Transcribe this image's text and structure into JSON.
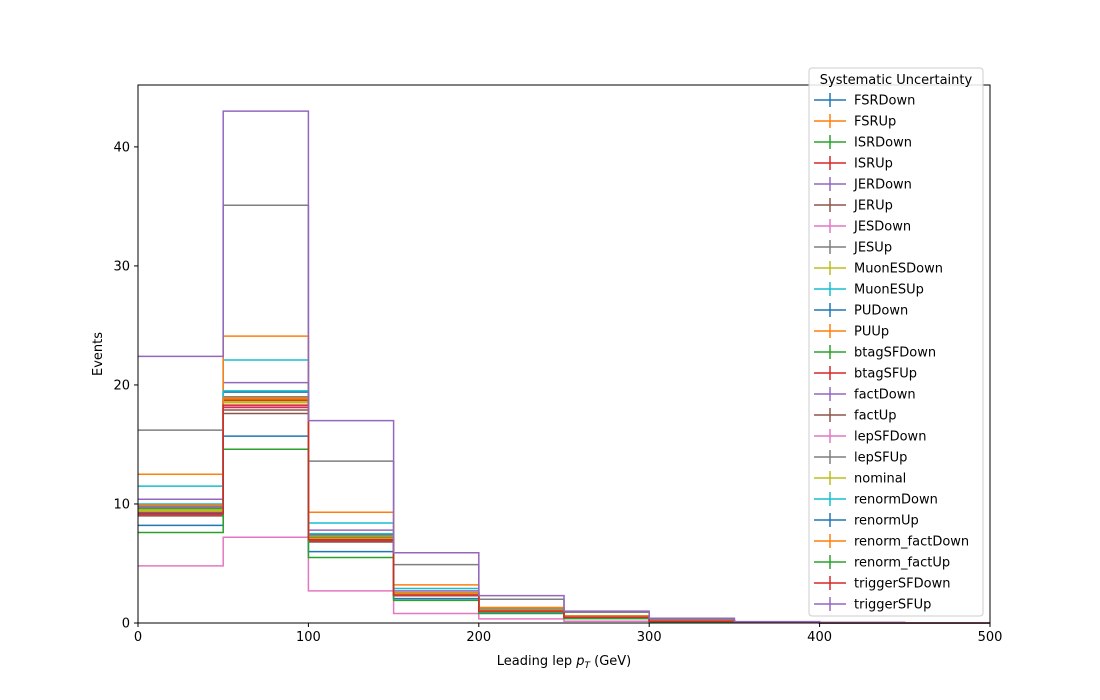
{
  "chart_data": {
    "type": "step",
    "xlabel_prefix": "Leading lep ",
    "xlabel_var": "p",
    "xlabel_sub": "T",
    "xlabel_suffix": " (GeV)",
    "ylabel": "Events",
    "xlim": [
      0,
      500
    ],
    "ylim": [
      0,
      45.2
    ],
    "xticks": [
      0,
      100,
      200,
      300,
      400,
      500
    ],
    "yticks": [
      0,
      10,
      20,
      30,
      40
    ],
    "grid": false,
    "legend_title": "Systematic Uncertainty",
    "legend_position": "upper-right",
    "bin_edges": [
      0,
      50,
      100,
      150,
      200,
      250,
      300,
      350,
      400,
      450,
      500
    ],
    "series": [
      {
        "name": "FSRDown",
        "color": "#1f77b4",
        "values": [
          9.3,
          18.7,
          7.1,
          2.4,
          1.0,
          0.5,
          0.15,
          0.05,
          0.0,
          0.0
        ]
      },
      {
        "name": "FSRUp",
        "color": "#ff7f0e",
        "values": [
          9.5,
          18.8,
          7.2,
          2.5,
          1.1,
          0.5,
          0.18,
          0.05,
          0.0,
          0.0
        ]
      },
      {
        "name": "ISRDown",
        "color": "#2ca02c",
        "values": [
          9.4,
          18.6,
          7.1,
          2.4,
          1.0,
          0.5,
          0.16,
          0.05,
          0.0,
          0.0
        ]
      },
      {
        "name": "ISRUp",
        "color": "#d62728",
        "values": [
          9.4,
          18.7,
          7.1,
          2.4,
          1.0,
          0.5,
          0.16,
          0.05,
          0.0,
          0.0
        ]
      },
      {
        "name": "JERDown",
        "color": "#9467bd",
        "values": [
          10.4,
          20.2,
          7.8,
          2.7,
          1.1,
          0.6,
          0.18,
          0.06,
          0.0,
          0.0
        ]
      },
      {
        "name": "JERUp",
        "color": "#8c564b",
        "values": [
          9.2,
          17.6,
          6.9,
          2.3,
          1.0,
          0.5,
          0.16,
          0.05,
          0.0,
          0.0
        ]
      },
      {
        "name": "JESDown",
        "color": "#e377c2",
        "values": [
          4.8,
          7.2,
          2.7,
          0.8,
          0.35,
          0.15,
          0.05,
          0.02,
          0.0,
          0.0
        ]
      },
      {
        "name": "JESUp",
        "color": "#7f7f7f",
        "values": [
          16.2,
          35.1,
          13.6,
          4.9,
          2.0,
          0.9,
          0.3,
          0.1,
          0.03,
          0.0
        ]
      },
      {
        "name": "MuonESDown",
        "color": "#bcbd22",
        "values": [
          9.4,
          18.5,
          7.1,
          2.4,
          1.0,
          0.5,
          0.16,
          0.05,
          0.0,
          0.0
        ]
      },
      {
        "name": "MuonESUp",
        "color": "#17becf",
        "values": [
          11.5,
          22.1,
          8.4,
          2.9,
          1.2,
          0.6,
          0.2,
          0.06,
          0.0,
          0.0
        ]
      },
      {
        "name": "PUDown",
        "color": "#1f77b4",
        "values": [
          9.9,
          19.4,
          7.4,
          2.5,
          1.1,
          0.5,
          0.17,
          0.05,
          0.0,
          0.0
        ]
      },
      {
        "name": "PUUp",
        "color": "#ff7f0e",
        "values": [
          12.5,
          24.1,
          9.3,
          3.2,
          1.3,
          0.6,
          0.2,
          0.07,
          0.0,
          0.0
        ]
      },
      {
        "name": "btagSFDown",
        "color": "#2ca02c",
        "values": [
          9.6,
          18.9,
          7.2,
          2.4,
          1.0,
          0.5,
          0.16,
          0.05,
          0.0,
          0.0
        ]
      },
      {
        "name": "btagSFUp",
        "color": "#d62728",
        "values": [
          9.1,
          18.1,
          6.9,
          2.3,
          1.0,
          0.5,
          0.15,
          0.05,
          0.0,
          0.0
        ]
      },
      {
        "name": "factDown",
        "color": "#9467bd",
        "values": [
          9.8,
          19.0,
          7.3,
          2.5,
          1.05,
          0.5,
          0.16,
          0.05,
          0.0,
          0.0
        ]
      },
      {
        "name": "factUp",
        "color": "#8c564b",
        "values": [
          9.0,
          17.9,
          6.8,
          2.3,
          1.0,
          0.45,
          0.15,
          0.05,
          0.0,
          0.0
        ]
      },
      {
        "name": "lepSFDown",
        "color": "#e377c2",
        "values": [
          9.2,
          18.2,
          7.0,
          2.35,
          1.0,
          0.5,
          0.15,
          0.05,
          0.0,
          0.0
        ]
      },
      {
        "name": "lepSFUp",
        "color": "#7f7f7f",
        "values": [
          9.7,
          19.0,
          7.3,
          2.5,
          1.05,
          0.5,
          0.16,
          0.05,
          0.0,
          0.0
        ]
      },
      {
        "name": "nominal",
        "color": "#bcbd22",
        "values": [
          9.5,
          18.6,
          7.1,
          2.4,
          1.0,
          0.5,
          0.16,
          0.05,
          0.0,
          0.0
        ]
      },
      {
        "name": "renormDown",
        "color": "#17becf",
        "values": [
          10.0,
          19.5,
          7.5,
          2.55,
          1.08,
          0.5,
          0.17,
          0.05,
          0.0,
          0.0
        ]
      },
      {
        "name": "renormUp",
        "color": "#1f77b4",
        "values": [
          8.2,
          15.7,
          6.0,
          2.05,
          0.85,
          0.4,
          0.13,
          0.04,
          0.0,
          0.0
        ]
      },
      {
        "name": "renorm_factDown",
        "color": "#ff7f0e",
        "values": [
          9.9,
          18.9,
          7.3,
          2.55,
          1.1,
          0.5,
          0.17,
          0.05,
          0.0,
          0.0
        ]
      },
      {
        "name": "renorm_factUp",
        "color": "#2ca02c",
        "values": [
          7.6,
          14.6,
          5.5,
          1.9,
          0.8,
          0.37,
          0.12,
          0.04,
          0.0,
          0.0
        ]
      },
      {
        "name": "triggerSFDown",
        "color": "#d62728",
        "values": [
          9.2,
          18.3,
          7.0,
          2.35,
          1.0,
          0.48,
          0.15,
          0.05,
          0.0,
          0.0
        ]
      },
      {
        "name": "triggerSFUp",
        "color": "#9467bd",
        "values": [
          22.4,
          43.0,
          17.0,
          5.9,
          2.3,
          1.0,
          0.4,
          0.12,
          0.05,
          0.02
        ]
      }
    ]
  }
}
